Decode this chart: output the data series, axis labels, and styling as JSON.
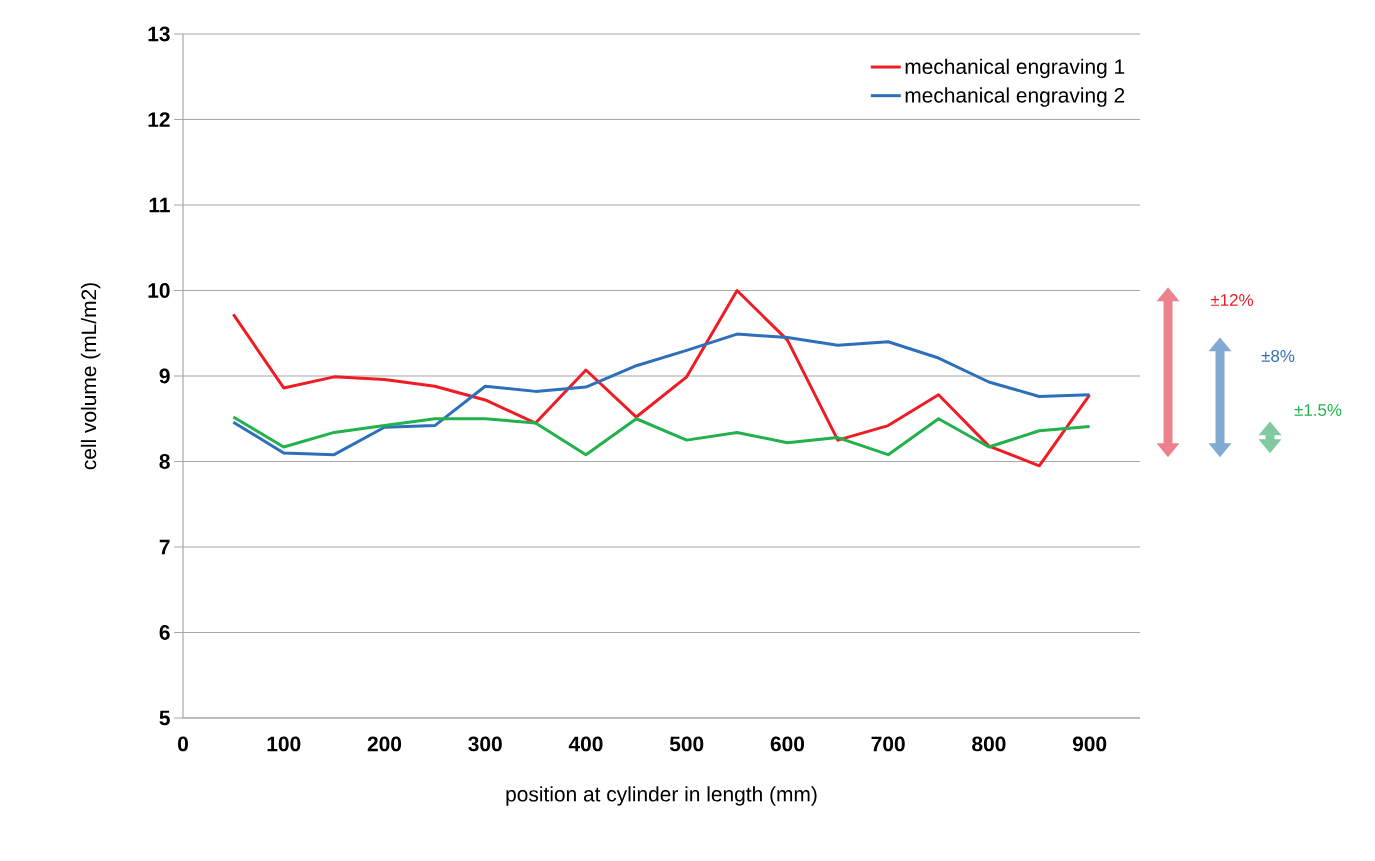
{
  "chart_data": {
    "type": "line",
    "xlabel": "position at cylinder in length (mm)",
    "ylabel": "cell volume (mL/m2)",
    "x": [
      50,
      100,
      150,
      200,
      250,
      300,
      350,
      400,
      450,
      500,
      550,
      600,
      650,
      700,
      750,
      800,
      850,
      900
    ],
    "series": [
      {
        "name": "mechanical engraving 1",
        "color": "#ee1c25",
        "values": [
          9.72,
          8.86,
          8.99,
          8.96,
          8.88,
          8.72,
          8.45,
          9.07,
          8.52,
          8.99,
          10.0,
          9.42,
          8.25,
          8.42,
          8.78,
          8.18,
          7.95,
          8.78
        ]
      },
      {
        "name": "mechanical engraving 2",
        "color": "#2e6fba",
        "values": [
          8.46,
          8.1,
          8.08,
          8.4,
          8.42,
          8.88,
          8.82,
          8.87,
          9.12,
          9.3,
          9.49,
          9.45,
          9.36,
          9.4,
          9.21,
          8.93,
          8.76,
          8.78
        ]
      },
      {
        "color": "#22b14c",
        "values": [
          8.52,
          8.17,
          8.34,
          8.42,
          8.5,
          8.5,
          8.45,
          8.08,
          8.5,
          8.25,
          8.34,
          8.22,
          8.28,
          8.08,
          8.5,
          8.17,
          8.36,
          8.41
        ]
      }
    ],
    "xlim": [
      0,
      950
    ],
    "ylim": [
      5,
      13
    ],
    "xticks": [
      0,
      100,
      200,
      300,
      400,
      500,
      600,
      700,
      800,
      900
    ],
    "yticks": [
      5,
      6,
      7,
      8,
      9,
      10,
      11,
      12,
      13
    ],
    "grid": "y",
    "legend": "top right",
    "marker": "none",
    "line_style": "solid",
    "annotations": [
      "±12%",
      "±8%",
      "±1.5%"
    ]
  }
}
